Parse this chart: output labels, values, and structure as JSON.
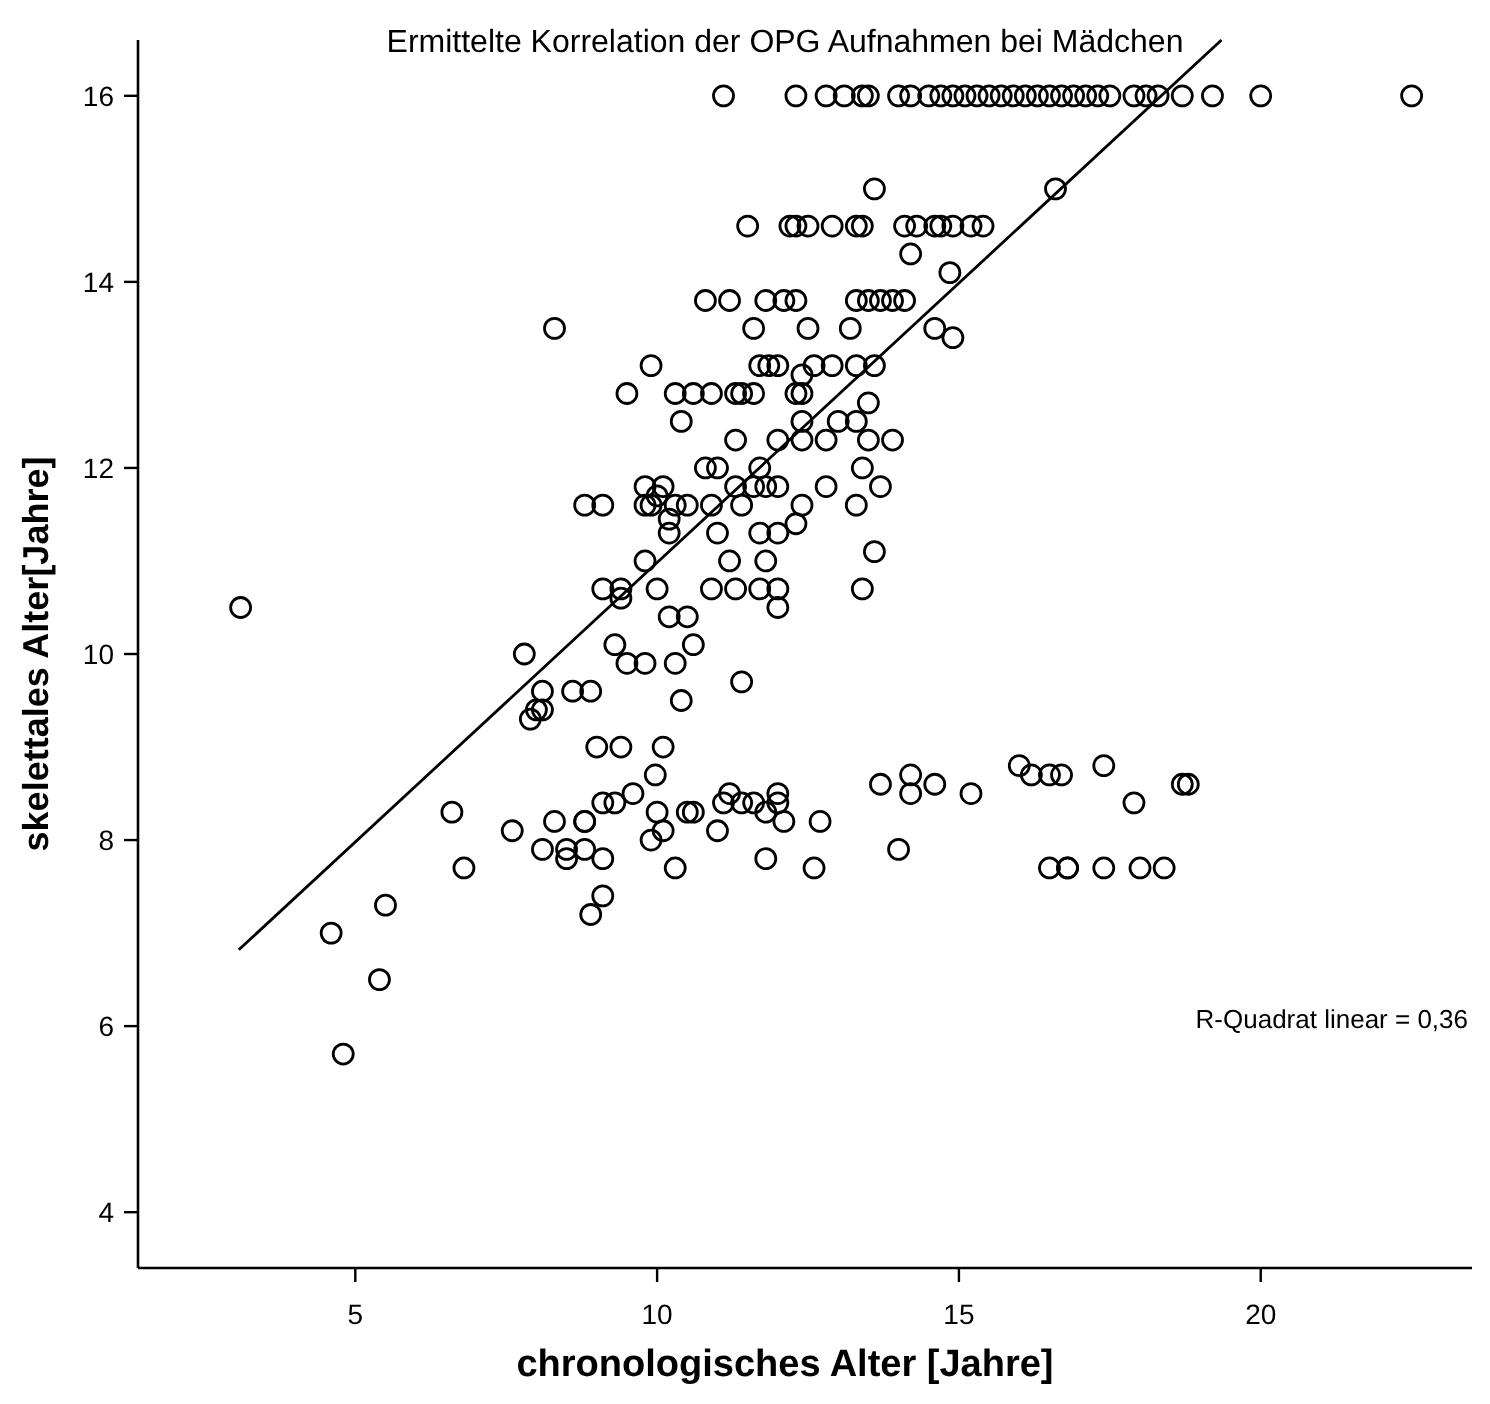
{
  "chart_data": {
    "type": "scatter",
    "title": "Ermittelte Korrelation der OPG Aufnahmen bei Mädchen",
    "xlabel": "chronologisches Alter [Jahre]",
    "ylabel": "skelettales Alter[Jahre]",
    "annotations": [
      "R-Quadrat linear = 0,36"
    ],
    "xlim": [
      1.4,
      23.5
    ],
    "ylim": [
      3.4,
      16.6
    ],
    "xticks": [
      5,
      10,
      15,
      20
    ],
    "yticks": [
      4,
      6,
      8,
      10,
      12,
      14,
      16
    ],
    "grid": false,
    "series": [
      {
        "color": "#000000",
        "marker": "circle",
        "x": [
          11.1,
          12.3,
          12.8,
          13.1,
          13.4,
          13.5,
          14.0,
          14.2,
          14.5,
          14.7,
          14.9,
          15.1,
          15.3,
          15.5,
          15.7,
          15.9,
          16.1,
          16.3,
          16.5,
          16.7,
          16.9,
          17.1,
          17.3,
          17.5,
          17.9,
          18.1,
          18.3,
          18.7,
          19.2,
          20.0,
          22.5,
          13.6,
          16.6,
          11.5,
          12.2,
          12.3,
          12.5,
          12.9,
          13.3,
          13.4,
          14.1,
          14.3,
          14.6,
          14.7,
          14.9,
          15.2,
          15.4,
          14.2,
          14.85,
          10.8,
          11.2,
          11.8,
          12.1,
          12.3,
          13.3,
          13.5,
          13.7,
          13.9,
          14.1,
          8.3,
          11.6,
          12.5,
          13.2,
          14.6,
          14.9,
          9.9,
          11.7,
          11.85,
          12.0,
          12.6,
          12.9,
          13.3,
          13.6,
          12.4,
          9.5,
          10.3,
          10.6,
          10.9,
          11.3,
          11.4,
          11.6,
          12.3,
          12.4,
          13.5,
          10.4,
          12.4,
          13.0,
          13.3,
          11.3,
          12.0,
          12.4,
          12.8,
          13.5,
          13.9,
          10.8,
          11.0,
          11.7,
          13.4,
          9.8,
          10.1,
          11.3,
          11.6,
          11.8,
          12.0,
          12.8,
          13.7,
          8.8,
          9.1,
          9.8,
          9.9,
          10.3,
          10.5,
          10.9,
          11.4,
          12.4,
          13.3,
          10.0,
          10.2,
          10.2,
          11.0,
          11.7,
          12.0,
          12.3,
          9.8,
          11.2,
          11.8,
          13.6,
          9.1,
          9.4,
          10.0,
          10.9,
          11.3,
          11.7,
          12.0,
          13.4,
          9.4,
          12.0,
          10.2,
          10.5,
          3.1,
          9.3,
          10.6,
          7.8,
          9.5,
          9.8,
          10.3,
          11.4,
          8.1,
          8.6,
          8.9,
          10.4,
          8.0,
          8.1,
          7.9,
          9.0,
          9.4,
          10.1,
          9.97,
          9.6,
          11.2,
          12.0,
          9.1,
          9.3,
          11.1,
          11.4,
          11.6,
          12.0,
          6.6,
          10.0,
          10.5,
          10.6,
          11.8,
          8.3,
          8.8,
          8.8,
          12.1,
          12.7,
          7.6,
          10.1,
          11.0,
          9.9,
          8.1,
          8.5,
          8.8,
          14.0,
          8.5,
          9.1,
          11.8,
          6.8,
          10.3,
          12.6,
          9.1,
          8.9,
          5.5,
          4.6,
          5.4,
          4.8,
          13.7,
          14.2,
          14.2,
          14.6,
          15.2,
          16.0,
          16.2,
          16.5,
          16.7,
          17.4,
          17.9,
          18.7,
          18.8,
          16.5,
          16.8,
          16.8,
          17.4,
          18.0,
          18.4
        ],
        "values": [
          16,
          16,
          16,
          16,
          16,
          16,
          16,
          16,
          16,
          16,
          16,
          16,
          16,
          16,
          16,
          16,
          16,
          16,
          16,
          16,
          16,
          16,
          16,
          16,
          16,
          16,
          16,
          16,
          16,
          16,
          16,
          15.0,
          15.0,
          14.6,
          14.6,
          14.6,
          14.6,
          14.6,
          14.6,
          14.6,
          14.6,
          14.6,
          14.6,
          14.6,
          14.6,
          14.6,
          14.6,
          14.3,
          14.1,
          13.8,
          13.8,
          13.8,
          13.8,
          13.8,
          13.8,
          13.8,
          13.8,
          13.8,
          13.8,
          13.5,
          13.5,
          13.5,
          13.5,
          13.5,
          13.4,
          13.1,
          13.1,
          13.1,
          13.1,
          13.1,
          13.1,
          13.1,
          13.1,
          13.0,
          12.8,
          12.8,
          12.8,
          12.8,
          12.8,
          12.8,
          12.8,
          12.8,
          12.8,
          12.7,
          12.5,
          12.5,
          12.5,
          12.5,
          12.3,
          12.3,
          12.3,
          12.3,
          12.3,
          12.3,
          12.0,
          12.0,
          12.0,
          12.0,
          11.8,
          11.8,
          11.8,
          11.8,
          11.8,
          11.8,
          11.8,
          11.8,
          11.6,
          11.6,
          11.6,
          11.6,
          11.6,
          11.6,
          11.6,
          11.6,
          11.6,
          11.6,
          11.7,
          11.45,
          11.3,
          11.3,
          11.3,
          11.3,
          11.4,
          11.0,
          11.0,
          11.0,
          11.1,
          10.7,
          10.7,
          10.7,
          10.7,
          10.7,
          10.7,
          10.7,
          10.7,
          10.6,
          10.5,
          10.4,
          10.4,
          10.5,
          10.1,
          10.1,
          10.0,
          9.9,
          9.9,
          9.9,
          9.7,
          9.6,
          9.6,
          9.6,
          9.5,
          9.4,
          9.4,
          9.3,
          9.0,
          9.0,
          9.0,
          8.7,
          8.5,
          8.5,
          8.5,
          8.4,
          8.4,
          8.4,
          8.4,
          8.4,
          8.4,
          8.3,
          8.3,
          8.3,
          8.3,
          8.3,
          8.2,
          8.2,
          8.2,
          8.2,
          8.2,
          8.1,
          8.1,
          8.1,
          8.0,
          7.9,
          7.9,
          7.9,
          7.9,
          7.8,
          7.8,
          7.8,
          7.7,
          7.7,
          7.7,
          7.4,
          7.2,
          7.3,
          7.0,
          6.5,
          5.7,
          8.6,
          8.7,
          8.5,
          8.6,
          8.5,
          8.8,
          8.7,
          8.7,
          8.7,
          8.8,
          8.4,
          8.6,
          8.6,
          7.7,
          7.7,
          7.7,
          7.7,
          7.7,
          7.7
        ]
      },
      {
        "type": "line",
        "color": "#000000",
        "marker": "none",
        "x": [
          3.07,
          19.35
        ],
        "values": [
          6.82,
          16.6
        ]
      }
    ]
  }
}
